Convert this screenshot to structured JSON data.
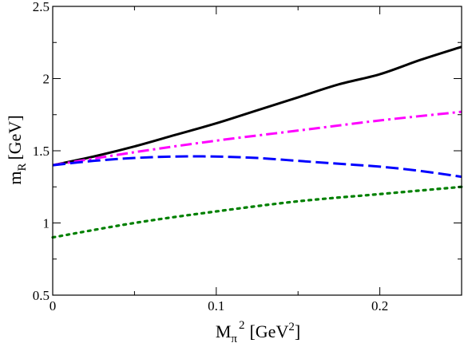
{
  "chart_data": {
    "type": "line",
    "xlabel": {
      "main": "M",
      "sub": "π",
      "sup": "2",
      "unit_pre": "[GeV",
      "unit_sup": "2",
      "unit_post": "]"
    },
    "ylabel": {
      "main": "m",
      "sub": "R",
      "unit": "[GeV]"
    },
    "xlim": [
      0,
      0.25
    ],
    "ylim": [
      0.5,
      2.5
    ],
    "x_ticks": [
      0,
      0.1,
      0.2
    ],
    "x_tick_labels": [
      "0",
      "0.1",
      "0.2"
    ],
    "y_ticks": [
      0.5,
      1,
      1.5,
      2,
      2.5
    ],
    "y_tick_labels": [
      "0.5",
      "1",
      "1.5",
      "2",
      "2.5"
    ],
    "grid": false,
    "legend": "none",
    "series": [
      {
        "style": "solid",
        "color": "#000000",
        "x": [
          0,
          0.025,
          0.05,
          0.075,
          0.1,
          0.125,
          0.15,
          0.175,
          0.2,
          0.225,
          0.25
        ],
        "y": [
          1.4,
          1.46,
          1.53,
          1.61,
          1.69,
          1.78,
          1.87,
          1.96,
          2.03,
          2.13,
          2.22
        ]
      },
      {
        "style": "dash-dot",
        "color": "#ff00ff",
        "x": [
          0,
          0.05,
          0.1,
          0.15,
          0.2,
          0.25
        ],
        "y": [
          1.4,
          1.49,
          1.57,
          1.64,
          1.71,
          1.77
        ]
      },
      {
        "style": "dashed",
        "color": "#0000ff",
        "x": [
          0,
          0.025,
          0.05,
          0.075,
          0.1,
          0.125,
          0.15,
          0.175,
          0.2,
          0.225,
          0.25
        ],
        "y": [
          1.4,
          1.43,
          1.45,
          1.46,
          1.46,
          1.45,
          1.43,
          1.41,
          1.39,
          1.36,
          1.32
        ]
      },
      {
        "style": "dotted",
        "color": "#008000",
        "x": [
          0,
          0.05,
          0.1,
          0.15,
          0.2,
          0.25
        ],
        "y": [
          0.9,
          1.0,
          1.08,
          1.15,
          1.2,
          1.25
        ]
      }
    ]
  }
}
